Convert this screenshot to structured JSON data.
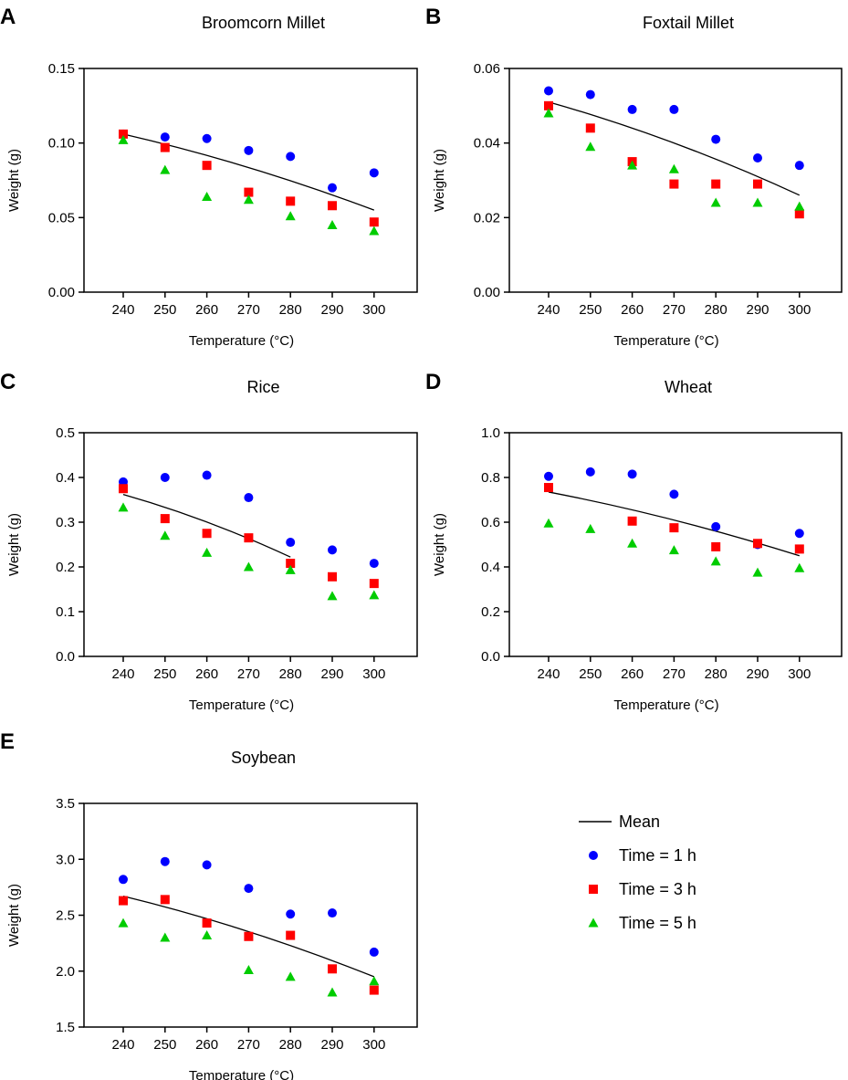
{
  "legend": {
    "items": [
      {
        "label": "Mean",
        "marker": "line",
        "color": "#000000"
      },
      {
        "label": "Time = 1 h",
        "marker": "circle",
        "color": "#0000FF"
      },
      {
        "label": "Time = 3 h",
        "marker": "square",
        "color": "#FF0000"
      },
      {
        "label": "Time = 5 h",
        "marker": "triangle",
        "color": "#00CC00"
      }
    ]
  },
  "chart_data": [
    {
      "panel": "A",
      "type": "scatter",
      "title": "Broomcorn Millet",
      "xlabel": "Temperature (°C)",
      "ylabel": "Weight (g)",
      "categories": [
        "240",
        "250",
        "260",
        "270",
        "280",
        "290",
        "300"
      ],
      "ylim": [
        0,
        0.15
      ],
      "yticks": [
        "0.00",
        "0.05",
        "0.10",
        "0.15"
      ],
      "series": [
        {
          "name": "Time = 1 h",
          "marker": "circle",
          "color": "#0000FF",
          "values": [
            0.106,
            0.104,
            0.103,
            0.095,
            0.091,
            0.07,
            0.08
          ]
        },
        {
          "name": "Time = 3 h",
          "marker": "square",
          "color": "#FF0000",
          "values": [
            0.106,
            0.097,
            0.085,
            0.067,
            0.061,
            0.058,
            0.047
          ]
        },
        {
          "name": "Time = 5 h",
          "marker": "triangle",
          "color": "#00CC00",
          "values": [
            0.102,
            0.082,
            0.064,
            0.062,
            0.051,
            0.045,
            0.041
          ]
        }
      ],
      "mean": {
        "name": "Mean",
        "x": [
          "240",
          "300"
        ],
        "values": [
          0.106,
          0.055
        ]
      }
    },
    {
      "panel": "B",
      "type": "scatter",
      "title": "Foxtail Millet",
      "xlabel": "Temperature (°C)",
      "ylabel": "Weight (g)",
      "categories": [
        "240",
        "250",
        "260",
        "270",
        "280",
        "290",
        "300"
      ],
      "ylim": [
        0,
        0.06
      ],
      "yticks": [
        "0.00",
        "0.02",
        "0.04",
        "0.06"
      ],
      "series": [
        {
          "name": "Time = 1 h",
          "marker": "circle",
          "color": "#0000FF",
          "values": [
            0.054,
            0.053,
            0.049,
            0.049,
            0.041,
            0.036,
            0.034
          ]
        },
        {
          "name": "Time = 3 h",
          "marker": "square",
          "color": "#FF0000",
          "values": [
            0.05,
            0.044,
            0.035,
            0.029,
            0.029,
            0.029,
            0.021
          ]
        },
        {
          "name": "Time = 5 h",
          "marker": "triangle",
          "color": "#00CC00",
          "values": [
            0.048,
            0.039,
            0.034,
            0.033,
            0.024,
            0.024,
            0.023
          ]
        }
      ],
      "mean": {
        "name": "Mean",
        "x": [
          "240",
          "300"
        ],
        "values": [
          0.051,
          0.026
        ]
      }
    },
    {
      "panel": "C",
      "type": "scatter",
      "title": "Rice",
      "xlabel": "Temperature (°C)",
      "ylabel": "Weight (g)",
      "categories": [
        "240",
        "250",
        "260",
        "270",
        "280",
        "290",
        "300"
      ],
      "ylim": [
        0,
        0.5
      ],
      "yticks": [
        "0.0",
        "0.1",
        "0.2",
        "0.3",
        "0.4",
        "0.5"
      ],
      "series": [
        {
          "name": "Time = 1 h",
          "marker": "circle",
          "color": "#0000FF",
          "values": [
            0.39,
            0.4,
            0.405,
            0.355,
            0.255,
            0.238,
            0.208
          ]
        },
        {
          "name": "Time = 3 h",
          "marker": "square",
          "color": "#FF0000",
          "values": [
            0.375,
            0.308,
            0.275,
            0.265,
            0.208,
            0.178,
            0.163
          ]
        },
        {
          "name": "Time = 5 h",
          "marker": "triangle",
          "color": "#00CC00",
          "values": [
            0.333,
            0.27,
            0.232,
            0.2,
            0.193,
            0.135,
            0.137
          ]
        }
      ],
      "mean": {
        "name": "Mean",
        "x": [
          "240",
          "280"
        ],
        "values": [
          0.362,
          0.222
        ]
      }
    },
    {
      "panel": "D",
      "type": "scatter",
      "title": "Wheat",
      "xlabel": "Temperature (°C)",
      "ylabel": "Weight (g)",
      "categories": [
        "240",
        "250",
        "260",
        "270",
        "280",
        "290",
        "300"
      ],
      "ylim": [
        0,
        1.0
      ],
      "yticks": [
        "0.0",
        "0.2",
        "0.4",
        "0.6",
        "0.8",
        "1.0"
      ],
      "series": [
        {
          "name": "Time = 1 h",
          "marker": "circle",
          "color": "#0000FF",
          "values": [
            0.805,
            0.825,
            0.815,
            0.725,
            0.58,
            0.5,
            0.55
          ]
        },
        {
          "name": "Time = 3 h",
          "marker": "square",
          "color": "#FF0000",
          "values": [
            0.755,
            null,
            0.605,
            0.575,
            0.49,
            0.505,
            0.48
          ]
        },
        {
          "name": "Time = 5 h",
          "marker": "triangle",
          "color": "#00CC00",
          "values": [
            0.595,
            0.57,
            0.505,
            0.475,
            0.425,
            0.375,
            0.395
          ]
        }
      ],
      "mean": {
        "name": "Mean",
        "x": [
          "240",
          "300"
        ],
        "values": [
          0.735,
          0.45
        ]
      }
    },
    {
      "panel": "E",
      "type": "scatter",
      "title": "Soybean",
      "xlabel": "Temperature (°C)",
      "ylabel": "Weight (g)",
      "categories": [
        "240",
        "250",
        "260",
        "270",
        "280",
        "290",
        "300"
      ],
      "ylim": [
        1.5,
        3.5
      ],
      "yticks": [
        "1.5",
        "2.0",
        "2.5",
        "3.0",
        "3.5"
      ],
      "series": [
        {
          "name": "Time = 1 h",
          "marker": "circle",
          "color": "#0000FF",
          "values": [
            2.82,
            2.98,
            2.95,
            2.74,
            2.51,
            2.52,
            2.17
          ]
        },
        {
          "name": "Time = 3 h",
          "marker": "square",
          "color": "#FF0000",
          "values": [
            2.63,
            2.64,
            2.43,
            2.31,
            2.32,
            2.02,
            1.83
          ]
        },
        {
          "name": "Time = 5 h",
          "marker": "triangle",
          "color": "#00CC00",
          "values": [
            2.43,
            2.3,
            2.32,
            2.01,
            1.95,
            1.81,
            1.91
          ]
        }
      ],
      "mean": {
        "name": "Mean",
        "x": [
          "240",
          "300"
        ],
        "values": [
          2.67,
          1.95
        ]
      }
    }
  ]
}
